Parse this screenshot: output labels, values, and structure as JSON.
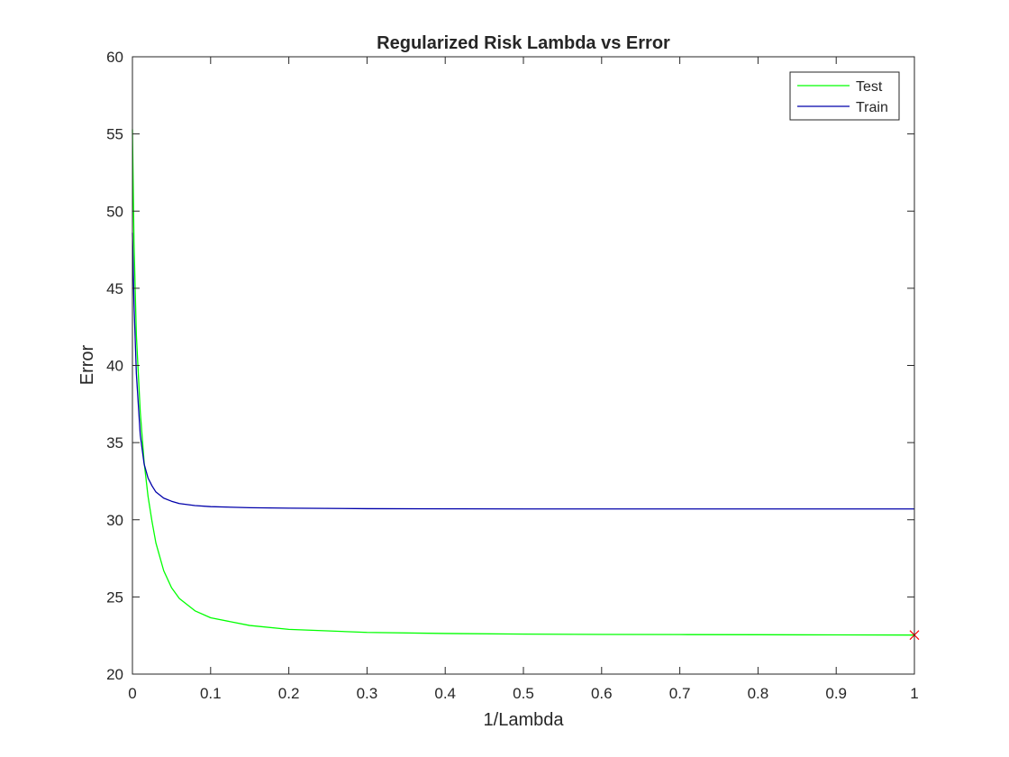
{
  "chart_data": {
    "type": "line",
    "title": "Regularized Risk Lambda vs Error",
    "xlabel": "1/Lambda",
    "ylabel": "Error",
    "xlim": [
      0,
      1
    ],
    "ylim": [
      20,
      60
    ],
    "xticks": [
      "0",
      "0.1",
      "0.2",
      "0.3",
      "0.4",
      "0.5",
      "0.6",
      "0.7",
      "0.8",
      "0.9",
      "1"
    ],
    "yticks": [
      "20",
      "25",
      "30",
      "35",
      "40",
      "45",
      "50",
      "55",
      "60"
    ],
    "grid": false,
    "legend_position": "top-right",
    "series": [
      {
        "name": "Test",
        "color": "#00ff00",
        "x": [
          0,
          0.002,
          0.005,
          0.01,
          0.015,
          0.02,
          0.025,
          0.03,
          0.04,
          0.05,
          0.06,
          0.08,
          0.1,
          0.15,
          0.2,
          0.3,
          0.4,
          0.5,
          0.6,
          0.7,
          0.8,
          0.9,
          1.0
        ],
        "y": [
          55.3,
          48.0,
          42.0,
          37.0,
          33.7,
          31.5,
          29.9,
          28.5,
          26.7,
          25.6,
          24.9,
          24.1,
          23.65,
          23.15,
          22.9,
          22.7,
          22.63,
          22.59,
          22.57,
          22.56,
          22.55,
          22.54,
          22.53
        ]
      },
      {
        "name": "Train",
        "color": "#0000aa",
        "x": [
          0,
          0.002,
          0.005,
          0.01,
          0.015,
          0.02,
          0.025,
          0.03,
          0.04,
          0.05,
          0.06,
          0.08,
          0.1,
          0.15,
          0.2,
          0.3,
          0.4,
          0.5,
          0.6,
          0.7,
          0.8,
          0.9,
          1.0
        ],
        "y": [
          48.6,
          44.0,
          39.5,
          35.5,
          33.6,
          32.7,
          32.2,
          31.8,
          31.4,
          31.2,
          31.05,
          30.92,
          30.85,
          30.78,
          30.75,
          30.72,
          30.71,
          30.7,
          30.7,
          30.7,
          30.7,
          30.7,
          30.7
        ]
      }
    ],
    "marker": {
      "x": 1.0,
      "y": 22.53,
      "symbol": "x",
      "color": "#ff0000"
    },
    "vline": {
      "x": 1.0,
      "color": "#ff0000",
      "style": "dotted"
    }
  }
}
